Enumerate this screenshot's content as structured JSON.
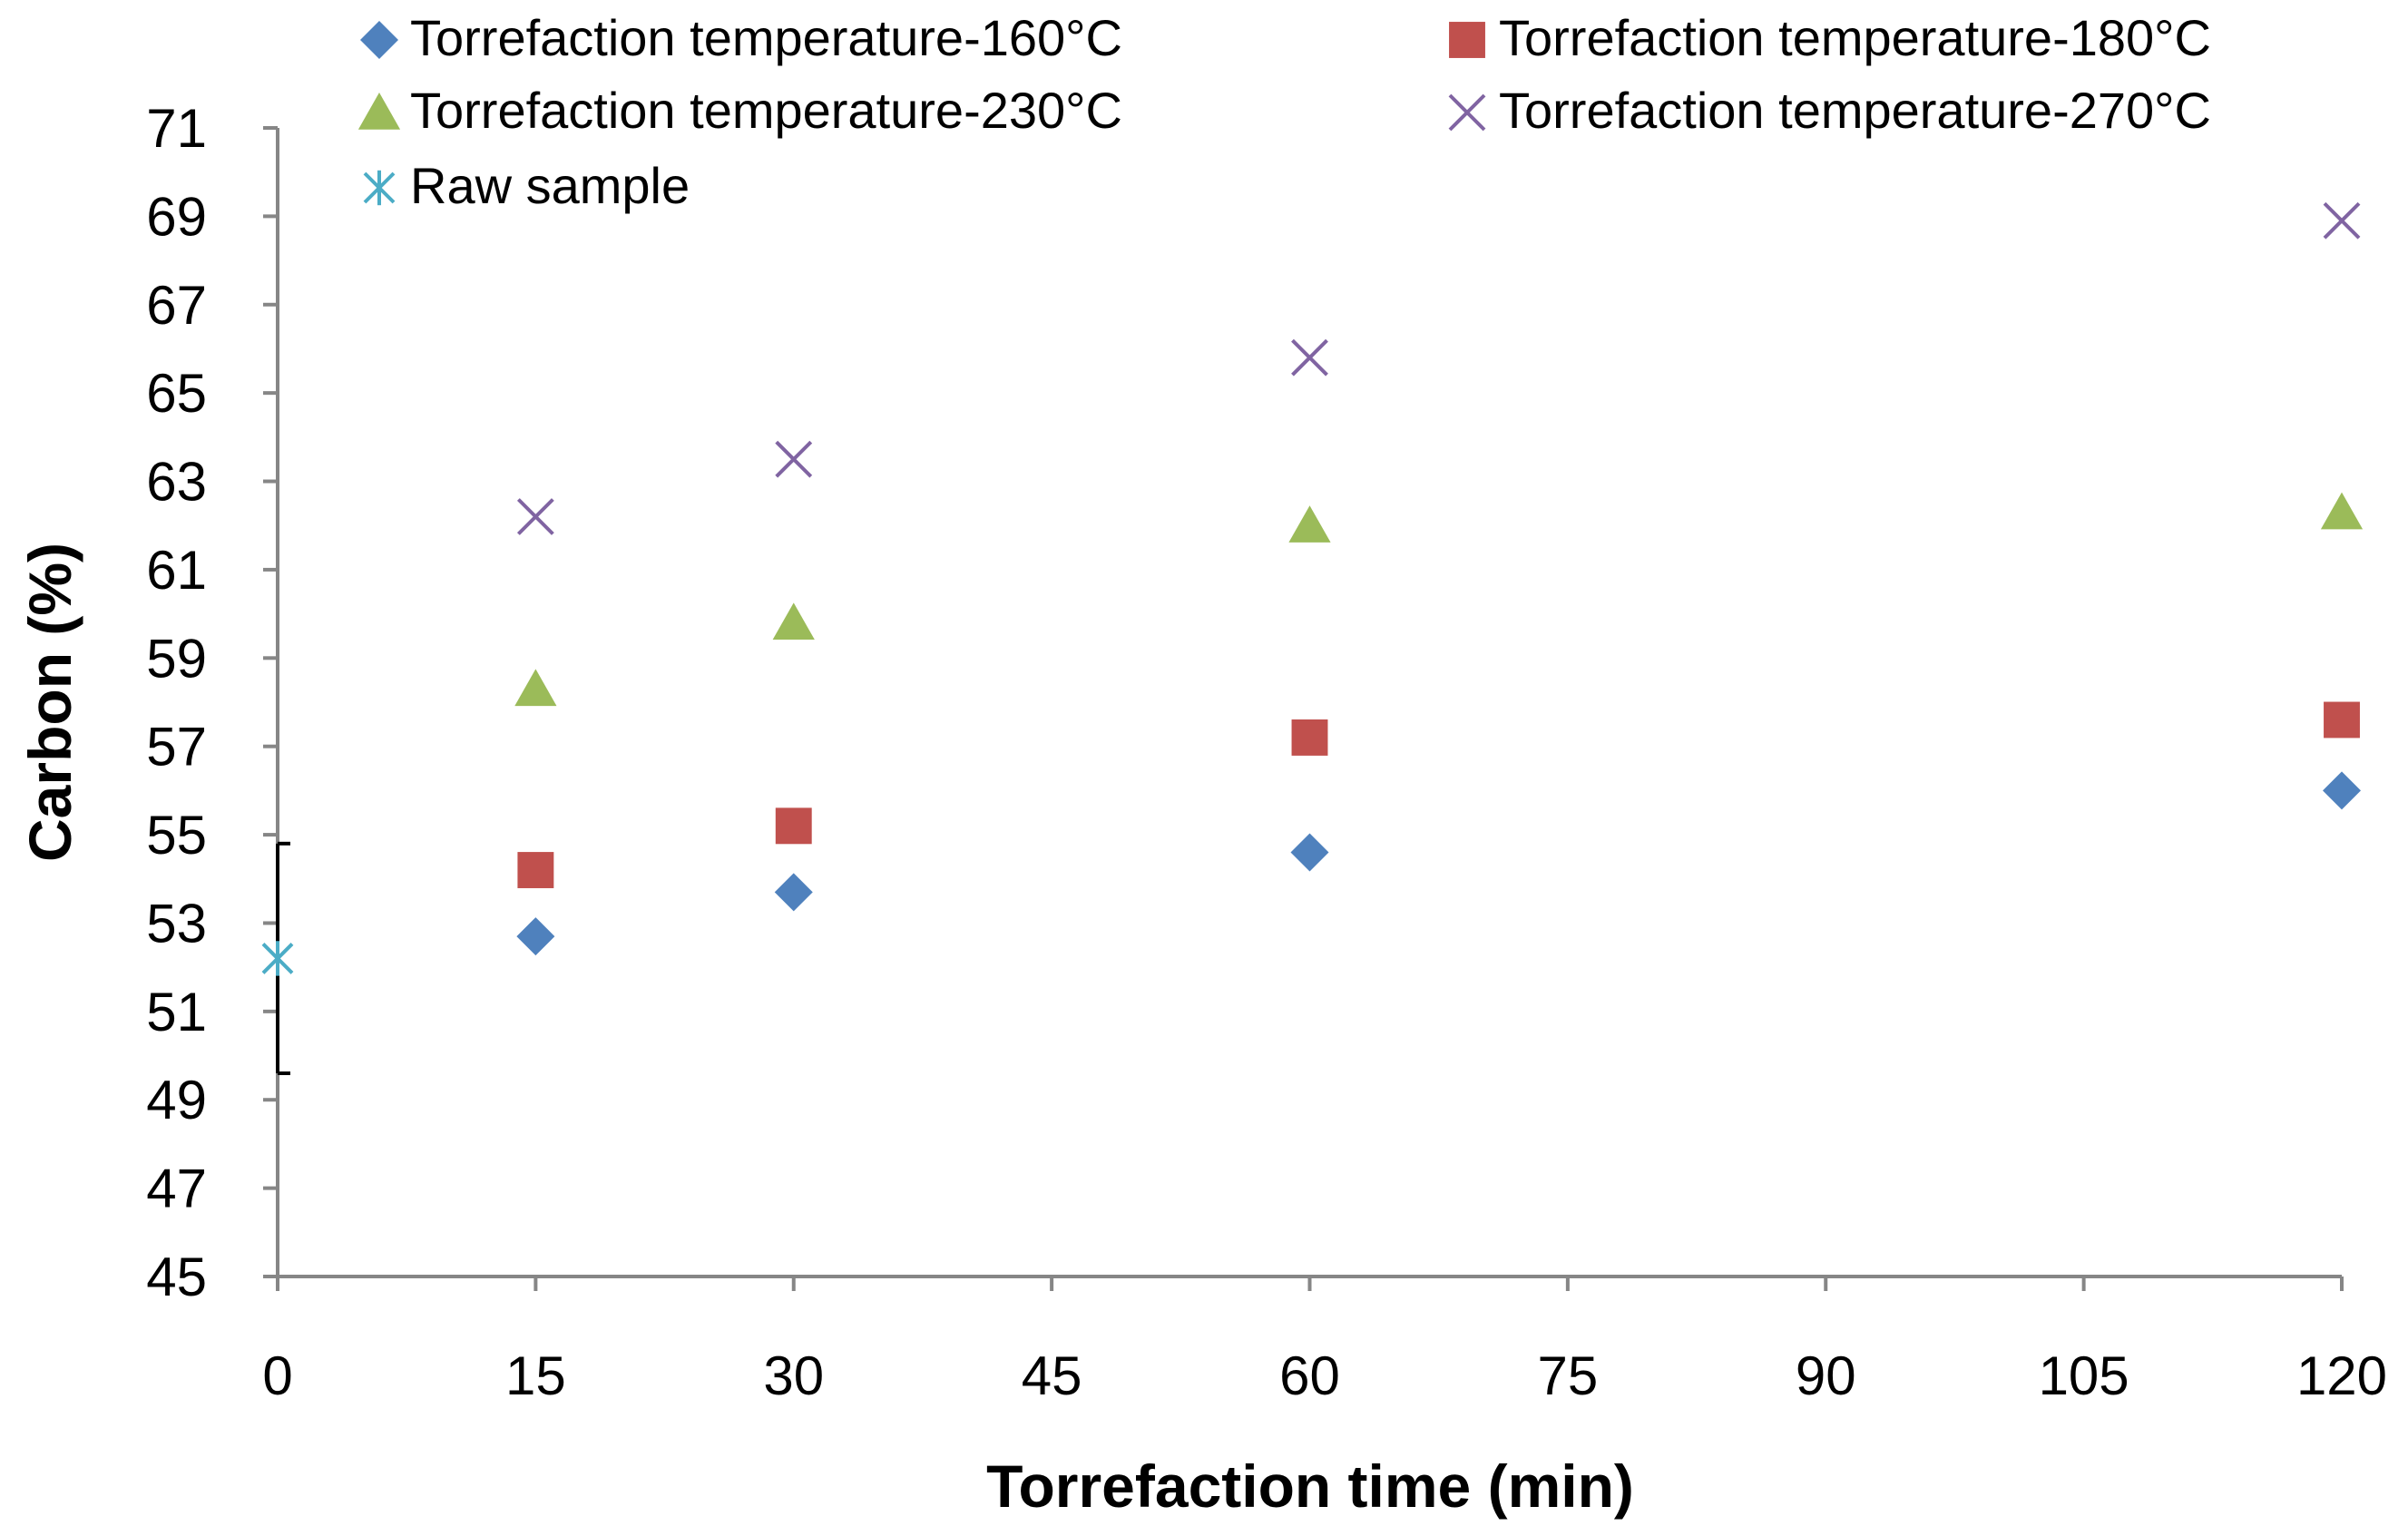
{
  "chart_data": {
    "type": "scatter",
    "title": "",
    "xlabel": "Torrefaction time (min)",
    "ylabel": "Carbon (%)",
    "xlim": [
      0,
      120
    ],
    "ylim": [
      45,
      71
    ],
    "xticks": [
      0,
      15,
      30,
      45,
      60,
      75,
      90,
      105,
      120
    ],
    "yticks": [
      45,
      47,
      49,
      51,
      53,
      55,
      57,
      59,
      61,
      63,
      65,
      67,
      69,
      71
    ],
    "grid": false,
    "legend_position": "top",
    "series": [
      {
        "name": "Torrefaction temperature-160°C",
        "marker": "diamond",
        "color": "#4f81bd",
        "x": [
          15,
          30,
          60,
          120
        ],
        "y": [
          52.7,
          53.7,
          54.6,
          56.0
        ]
      },
      {
        "name": "Torrefaction temperature-180°C",
        "marker": "square",
        "color": "#c0504d",
        "x": [
          15,
          30,
          60,
          120
        ],
        "y": [
          54.2,
          55.2,
          57.2,
          57.6
        ]
      },
      {
        "name": "Torrefaction temperature-230°C",
        "marker": "triangle",
        "color": "#9bbb59",
        "x": [
          15,
          30,
          60,
          120
        ],
        "y": [
          58.3,
          59.8,
          62.0,
          62.3
        ]
      },
      {
        "name": "Torrefaction temperature-270°C",
        "marker": "x",
        "color": "#8064a2",
        "x": [
          15,
          30,
          60,
          120
        ],
        "y": [
          62.2,
          63.5,
          65.8,
          68.9
        ]
      },
      {
        "name": "Raw sample",
        "marker": "star",
        "color": "#4bacc6",
        "x": [
          0
        ],
        "y": [
          52.2
        ],
        "error": [
          2.6
        ]
      }
    ]
  }
}
